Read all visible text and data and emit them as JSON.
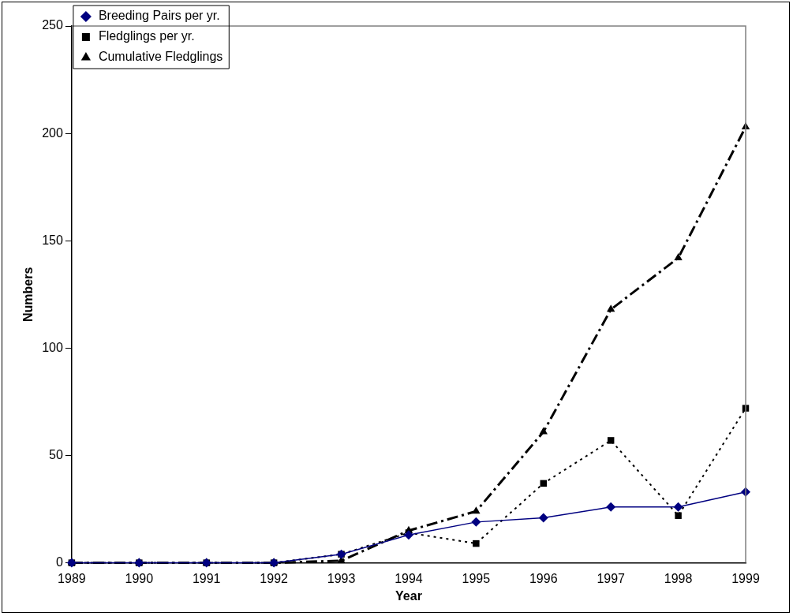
{
  "chart_data": {
    "type": "line",
    "xlabel": "Year",
    "ylabel": "Numbers",
    "x": [
      1989,
      1990,
      1991,
      1992,
      1993,
      1994,
      1995,
      1996,
      1997,
      1998,
      1999
    ],
    "xlim": [
      1989,
      1999
    ],
    "xticks": [
      1989,
      1990,
      1991,
      1992,
      1993,
      1994,
      1995,
      1996,
      1997,
      1998,
      1999
    ],
    "ylim": [
      0,
      250
    ],
    "yticks": [
      0,
      50,
      100,
      150,
      200,
      250
    ],
    "grid": false,
    "legend": "top left",
    "series": [
      {
        "name": "Breeding Pairs per yr.",
        "color": "#000080",
        "marker": "diamond",
        "line_style": "solid",
        "values": [
          0,
          0,
          0,
          0,
          4,
          13,
          19,
          21,
          26,
          26,
          33
        ]
      },
      {
        "name": "Fledglings per yr.",
        "color": "#000000",
        "marker": "square",
        "line_style": "dotted",
        "values": [
          0,
          0,
          0,
          0,
          4,
          14,
          9,
          37,
          57,
          22,
          72
        ]
      },
      {
        "name": "Cumulative Fledglings",
        "color": "#000000",
        "marker": "triangle",
        "line_style": "dashed",
        "values": [
          0,
          0,
          0,
          0,
          1,
          15,
          24,
          61,
          118,
          142,
          203
        ]
      }
    ]
  }
}
